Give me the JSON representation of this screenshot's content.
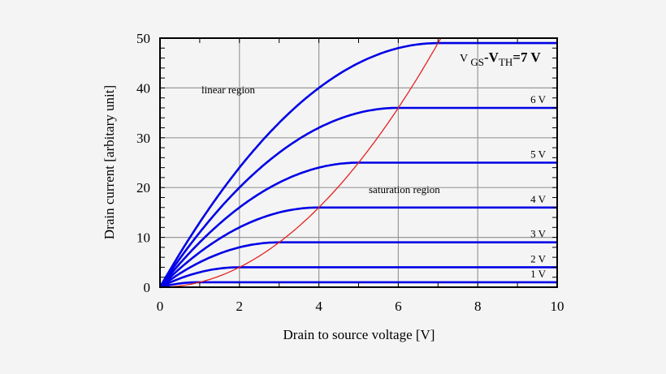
{
  "chart_data": {
    "type": "line",
    "title": "",
    "xlabel": "Drain to source voltage [V]",
    "ylabel": "Drain current [arbitary unit]",
    "xlim": [
      0,
      10
    ],
    "ylim": [
      0,
      50
    ],
    "x_ticks": [
      "0",
      "2",
      "4",
      "6",
      "8",
      "10"
    ],
    "y_ticks": [
      "0",
      "10",
      "20",
      "30",
      "40",
      "50"
    ],
    "grid": true,
    "series": [
      {
        "name": "1 V",
        "vov": 1,
        "color": "#0000e6"
      },
      {
        "name": "2 V",
        "vov": 2,
        "color": "#0000e6"
      },
      {
        "name": "3 V",
        "vov": 3,
        "color": "#0000e6"
      },
      {
        "name": "4 V",
        "vov": 4,
        "color": "#0000e6"
      },
      {
        "name": "5 V",
        "vov": 5,
        "color": "#0000e6"
      },
      {
        "name": "6 V",
        "vov": 6,
        "color": "#0000e6"
      },
      {
        "name": "7 V",
        "vov": 7,
        "color": "#0000e6"
      }
    ],
    "boundary": {
      "name": "saturation boundary I = V^2",
      "color": "#e62020"
    },
    "top_label": {
      "prefix": "V ",
      "sub1": "GS",
      "mid": "-V",
      "sub2": "TH",
      "suffix": "=7 V"
    },
    "annotations": {
      "linear": "linear region",
      "saturation": "saturation region"
    }
  }
}
